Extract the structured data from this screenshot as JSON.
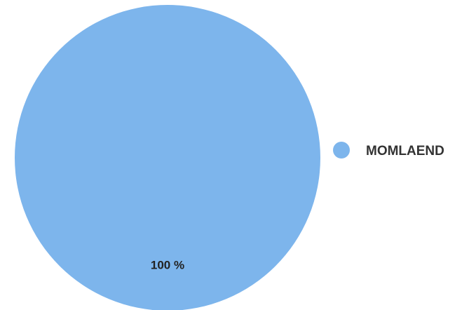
{
  "chart_data": {
    "type": "pie",
    "categories": [
      "MOMLAEND"
    ],
    "values": [
      100
    ],
    "data_labels": [
      "100 %"
    ],
    "colors": [
      "#7db5ec"
    ],
    "legend_position": "right",
    "title": "",
    "xlabel": "",
    "ylabel": ""
  }
}
